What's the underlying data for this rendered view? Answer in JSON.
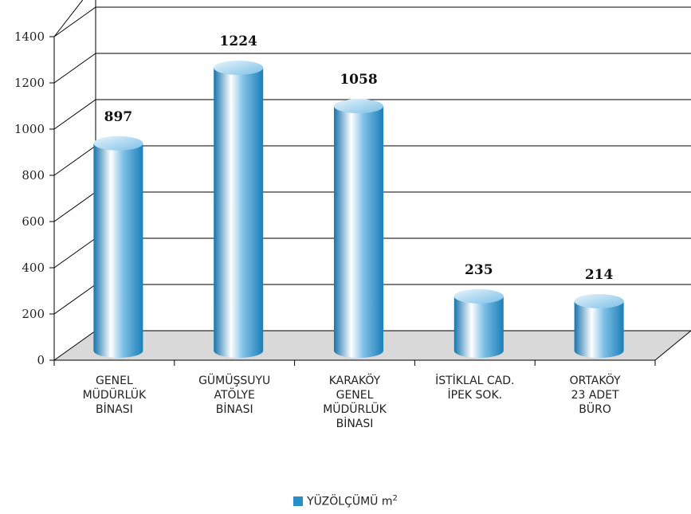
{
  "colors": {
    "bar_dark": "#1a7fb8",
    "bar_light": "#ffffff",
    "floor": "#d9d9d9",
    "grid": "#000000",
    "legend_swatch": "#2a8fc9"
  },
  "chart_data": {
    "type": "bar",
    "three_d": true,
    "categories": [
      [
        "GENEL",
        "MÜDÜRLÜK",
        "BİNASI"
      ],
      [
        "GÜMÜŞSUYU",
        "ATÖLYE",
        "BİNASI"
      ],
      [
        "KARAKÖY",
        "GENEL",
        "MÜDÜRLÜK",
        "BİNASI"
      ],
      [
        "İSTİKLAL CAD.",
        "İPEK SOK."
      ],
      [
        "ORTAKÖY",
        "23 ADET",
        "BÜRO"
      ]
    ],
    "series": [
      {
        "name": "YÜZÖLÇÜMÜ m",
        "name_superscript": "2",
        "values": [
          897,
          1224,
          1058,
          235,
          214
        ]
      }
    ],
    "data_labels": [
      "897",
      "1224",
      "1058",
      "235",
      "214"
    ],
    "y_ticks": [
      "0",
      "200",
      "400",
      "600",
      "800",
      "1000",
      "1200",
      "1400"
    ],
    "ylim": [
      0,
      1400
    ],
    "grid": true,
    "legend_position": "bottom-center"
  }
}
